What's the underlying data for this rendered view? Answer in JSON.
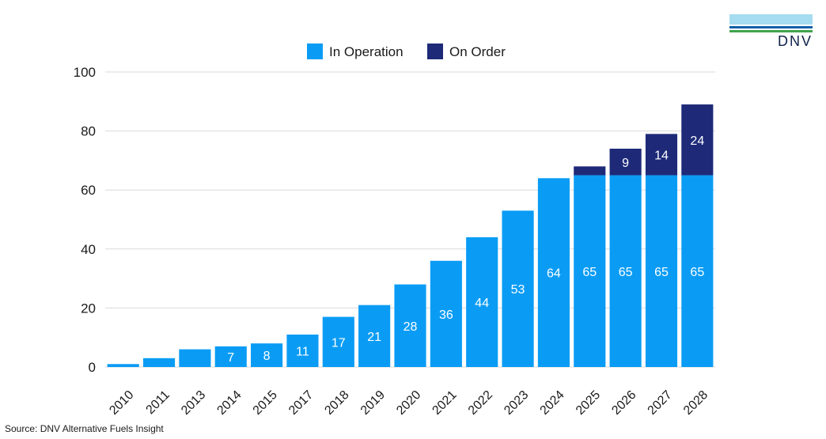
{
  "logo": {
    "text": "DNV"
  },
  "source": "Source: DNV Alternative Fuels Insight",
  "colors": {
    "in_operation": "#0a9cf5",
    "on_order": "#1e2a78",
    "grid": "#d9d9d9"
  },
  "chart_data": {
    "type": "bar",
    "stacked": true,
    "categories": [
      "2010",
      "2011",
      "2013",
      "2014",
      "2015",
      "2017",
      "2018",
      "2019",
      "2020",
      "2021",
      "2022",
      "2023",
      "2024",
      "2025",
      "2026",
      "2027",
      "2028"
    ],
    "series": [
      {
        "name": "In Operation",
        "values": [
          1,
          3,
          6,
          7,
          8,
          11,
          17,
          21,
          28,
          36,
          44,
          53,
          64,
          65,
          65,
          65,
          65
        ]
      },
      {
        "name": "On Order",
        "values": [
          0,
          0,
          0,
          0,
          0,
          0,
          0,
          0,
          0,
          0,
          0,
          0,
          0,
          3,
          9,
          14,
          24
        ]
      }
    ],
    "data_labels": [
      [
        null,
        null,
        null,
        "7",
        "8",
        "11",
        "17",
        "21",
        "28",
        "36",
        "44",
        "53",
        "64",
        "65",
        "65",
        "65",
        "65"
      ],
      [
        null,
        null,
        null,
        null,
        null,
        null,
        null,
        null,
        null,
        null,
        null,
        null,
        null,
        null,
        "9",
        "14",
        "24"
      ]
    ],
    "yticks": [
      "0",
      "20",
      "40",
      "60",
      "80",
      "100"
    ],
    "ylim": [
      0,
      100
    ],
    "grid": true,
    "legend_position": "top-center"
  }
}
